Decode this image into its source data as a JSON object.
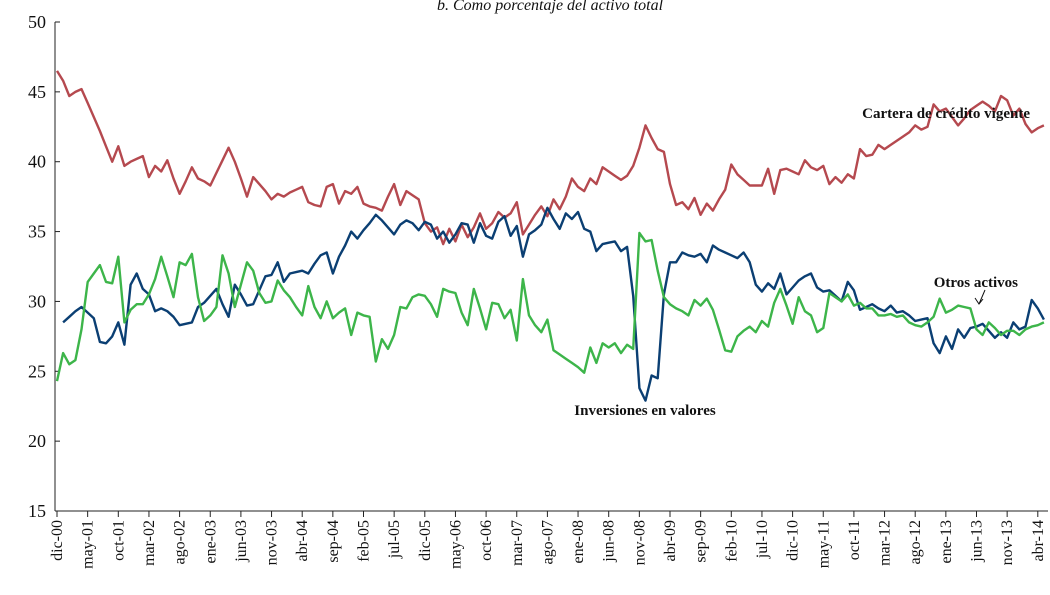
{
  "chart_data": {
    "type": "line",
    "title": "b. Como porcentaje del activo total",
    "categories": [
      "dic-00",
      null,
      null,
      null,
      null,
      "may-01",
      null,
      null,
      null,
      null,
      "oct-01",
      null,
      null,
      null,
      null,
      "mar-02",
      null,
      null,
      null,
      null,
      "ago-02",
      null,
      null,
      null,
      null,
      "ene-03",
      null,
      null,
      null,
      null,
      "jun-03",
      null,
      null,
      null,
      null,
      "nov-03",
      null,
      null,
      null,
      null,
      "abr-04",
      null,
      null,
      null,
      null,
      "sep-04",
      null,
      null,
      null,
      null,
      "feb-05",
      null,
      null,
      null,
      null,
      "jul-05",
      null,
      null,
      null,
      null,
      "dic-05",
      null,
      null,
      null,
      null,
      "may-06",
      null,
      null,
      null,
      null,
      "oct-06",
      null,
      null,
      null,
      null,
      "mar-07",
      null,
      null,
      null,
      null,
      "ago-07",
      null,
      null,
      null,
      null,
      "ene-08",
      null,
      null,
      null,
      null,
      "jun-08",
      null,
      null,
      null,
      null,
      "nov-08",
      null,
      null,
      null,
      null,
      "abr-09",
      null,
      null,
      null,
      null,
      "sep-09",
      null,
      null,
      null,
      null,
      "feb-10",
      null,
      null,
      null,
      null,
      "jul-10",
      null,
      null,
      null,
      null,
      "dic-10",
      null,
      null,
      null,
      null,
      "may-11",
      null,
      null,
      null,
      null,
      "oct-11",
      null,
      null,
      null,
      null,
      "mar-12",
      null,
      null,
      null,
      null,
      "ago-12",
      null,
      null,
      null,
      null,
      "ene-13",
      null,
      null,
      null,
      null,
      "jun-13",
      null,
      null,
      null,
      null,
      "nov-13",
      null,
      null,
      null,
      null,
      "abr-14",
      null
    ],
    "series": [
      {
        "name": "Cartera de crédito vigente",
        "color": "#b5494f",
        "values": [
          46.5,
          45.8,
          44.7,
          45.0,
          45.2,
          44.2,
          43.2,
          42.2,
          41.1,
          40.0,
          41.1,
          39.7,
          40.0,
          40.2,
          40.4,
          38.9,
          39.7,
          39.3,
          40.1,
          38.8,
          37.7,
          38.6,
          39.6,
          38.8,
          38.6,
          38.3,
          39.2,
          40.1,
          41.0,
          40.0,
          38.8,
          37.5,
          38.9,
          38.4,
          37.9,
          37.3,
          37.7,
          37.5,
          37.8,
          38.0,
          38.2,
          37.1,
          36.9,
          36.8,
          38.2,
          38.4,
          37.0,
          37.9,
          37.7,
          38.2,
          37.0,
          36.8,
          36.7,
          36.5,
          37.5,
          38.4,
          36.9,
          37.9,
          37.6,
          37.3,
          35.6,
          35.0,
          35.3,
          34.1,
          35.2,
          34.3,
          35.5,
          34.6,
          35.3,
          36.3,
          35.2,
          35.6,
          36.4,
          36.0,
          36.3,
          37.1,
          34.8,
          35.5,
          36.2,
          36.8,
          36.1,
          37.3,
          36.6,
          37.5,
          38.8,
          38.2,
          37.9,
          38.8,
          38.4,
          39.6,
          39.3,
          39.0,
          38.7,
          39.0,
          39.7,
          41.0,
          42.6,
          41.7,
          40.9,
          40.7,
          38.4,
          36.9,
          37.1,
          36.6,
          37.4,
          36.2,
          37.0,
          36.5,
          37.3,
          38.0,
          39.8,
          39.1,
          38.7,
          38.3,
          38.3,
          38.3,
          39.5,
          37.7,
          39.4,
          39.5,
          39.3,
          39.1,
          40.1,
          39.6,
          39.4,
          39.7,
          38.4,
          38.9,
          38.5,
          39.1,
          38.8,
          40.9,
          40.4,
          40.5,
          41.2,
          40.9,
          41.2,
          41.5,
          41.8,
          42.1,
          42.6,
          42.3,
          42.5,
          44.1,
          43.6,
          43.8,
          43.2,
          42.6,
          43.1,
          43.7,
          44.0,
          44.3,
          44.0,
          43.6,
          44.7,
          44.4,
          43.3,
          43.8,
          42.7,
          42.1,
          42.4,
          42.6
        ]
      },
      {
        "name": "Inversiones en valores",
        "color": "#0b3f73",
        "values": [
          null,
          28.5,
          28.9,
          29.3,
          29.6,
          29.2,
          28.8,
          27.1,
          27.0,
          27.5,
          28.5,
          26.9,
          31.2,
          32.0,
          30.9,
          30.5,
          29.3,
          29.5,
          29.3,
          28.9,
          28.3,
          28.4,
          28.5,
          29.6,
          29.9,
          30.4,
          30.9,
          29.8,
          28.9,
          31.2,
          30.5,
          29.7,
          29.8,
          30.8,
          31.8,
          31.9,
          32.8,
          31.4,
          32.0,
          32.1,
          32.2,
          32.0,
          32.7,
          33.3,
          33.5,
          32.0,
          33.2,
          34.0,
          35.0,
          34.5,
          35.1,
          35.6,
          36.2,
          35.8,
          35.3,
          34.8,
          35.5,
          35.8,
          35.6,
          35.1,
          35.7,
          35.5,
          34.5,
          35.0,
          34.2,
          34.8,
          35.6,
          35.5,
          34.2,
          35.6,
          34.7,
          34.5,
          35.7,
          36.1,
          34.7,
          35.4,
          33.2,
          34.8,
          35.1,
          35.5,
          36.7,
          35.9,
          35.2,
          36.3,
          35.9,
          36.4,
          35.2,
          35.0,
          33.6,
          34.1,
          34.2,
          34.3,
          33.6,
          33.9,
          30.4,
          23.8,
          22.9,
          24.7,
          24.5,
          30.5,
          32.8,
          32.8,
          33.5,
          33.3,
          33.2,
          33.4,
          32.8,
          34.0,
          33.7,
          33.5,
          33.3,
          33.1,
          33.5,
          32.8,
          31.2,
          30.7,
          31.3,
          30.9,
          32.0,
          30.5,
          31.0,
          31.5,
          31.8,
          32.0,
          31.0,
          30.7,
          30.8,
          30.4,
          30.0,
          31.4,
          30.8,
          29.4,
          29.6,
          29.8,
          29.5,
          29.3,
          29.7,
          29.2,
          29.3,
          29.0,
          28.6,
          28.7,
          28.8,
          27.0,
          26.3,
          27.5,
          26.6,
          28.0,
          27.4,
          28.1,
          28.2,
          28.4,
          27.9,
          27.4,
          27.8,
          27.4,
          28.5,
          28.0,
          28.2,
          30.1,
          29.5,
          28.7
        ]
      },
      {
        "name": "Otros activos",
        "color": "#3db54a",
        "values": [
          24.3,
          26.3,
          25.5,
          25.8,
          28.0,
          31.4,
          32.0,
          32.6,
          31.4,
          31.3,
          33.2,
          28.5,
          29.4,
          29.8,
          29.8,
          30.5,
          31.6,
          33.2,
          31.8,
          30.3,
          32.8,
          32.6,
          33.4,
          30.3,
          28.6,
          29.0,
          29.6,
          33.3,
          32.0,
          29.6,
          31.2,
          32.8,
          32.2,
          30.6,
          29.9,
          30.0,
          31.5,
          30.8,
          30.3,
          29.6,
          29.0,
          31.1,
          29.6,
          28.8,
          30.0,
          28.8,
          29.2,
          29.5,
          27.6,
          29.2,
          29.0,
          28.9,
          25.7,
          27.3,
          26.6,
          27.6,
          29.6,
          29.5,
          30.3,
          30.5,
          30.4,
          29.8,
          28.9,
          30.9,
          30.7,
          30.6,
          29.2,
          28.3,
          30.9,
          29.5,
          28.0,
          29.9,
          29.8,
          28.8,
          29.4,
          27.2,
          31.6,
          29.0,
          28.3,
          27.8,
          28.7,
          26.5,
          26.2,
          25.9,
          25.6,
          25.3,
          24.9,
          26.7,
          25.6,
          27.0,
          26.7,
          27.0,
          26.3,
          26.9,
          26.6,
          34.9,
          34.3,
          34.4,
          32.2,
          30.3,
          29.8,
          29.5,
          29.3,
          29.0,
          30.1,
          29.7,
          30.2,
          29.4,
          28.0,
          26.5,
          26.4,
          27.5,
          27.9,
          28.2,
          27.8,
          28.6,
          28.2,
          29.9,
          30.9,
          29.7,
          28.4,
          30.3,
          29.3,
          29.0,
          27.8,
          28.1,
          30.6,
          30.3,
          30.0,
          30.5,
          29.7,
          29.9,
          29.5,
          29.5,
          29.0,
          29.0,
          29.1,
          28.9,
          29.0,
          28.5,
          28.3,
          28.2,
          28.5,
          28.9,
          30.2,
          29.2,
          29.4,
          29.7,
          29.6,
          29.5,
          28.0,
          27.6,
          28.5,
          28.1,
          27.6,
          27.9,
          27.9,
          27.6,
          28.0,
          28.2,
          28.3,
          28.5
        ]
      }
    ],
    "ylim": [
      15,
      50
    ],
    "yticks": [
      15,
      20,
      25,
      30,
      35,
      40,
      45,
      50
    ]
  }
}
